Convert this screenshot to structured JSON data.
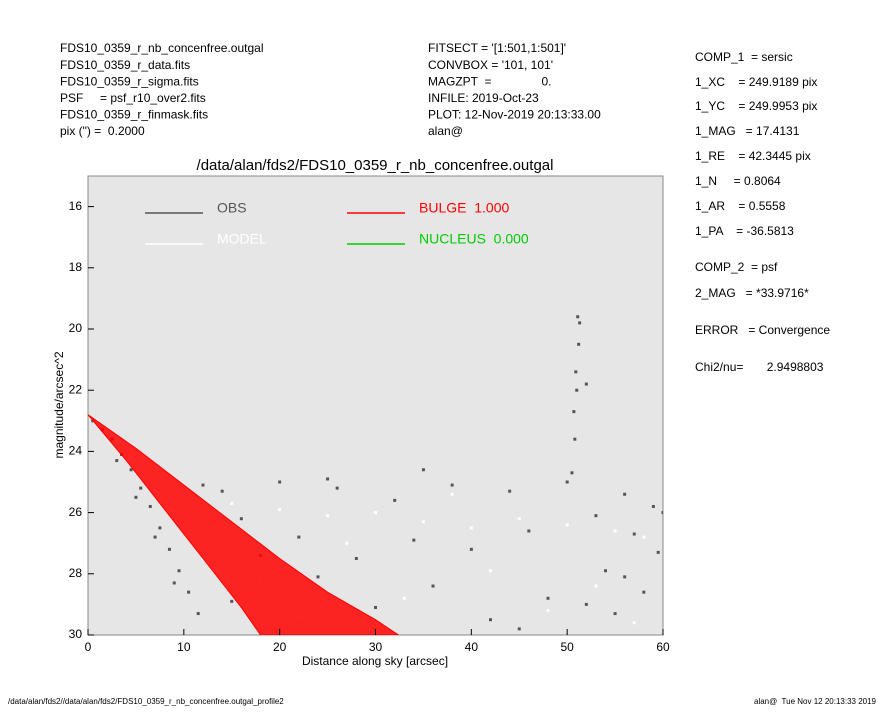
{
  "chart_data": {
    "type": "scatter",
    "title": "/data/alan/fds2/FDS10_0359_r_nb_concenfree.outgal",
    "xlabel": "Distance along sky [arcsec]",
    "ylabel": "magnitude/arcsec^2",
    "header_left": [
      "FDS10_0359_r_nb_concenfree.outgal",
      "FDS10_0359_r_data.fits",
      "FDS10_0359_r_sigma.fits",
      "PSF     = psf_r10_over2.fits",
      "FDS10_0359_r_finmask.fits",
      "pix (\") =  0.2000"
    ],
    "header_middle": [
      "FITSECT = '[1:501,1:501]'",
      "CONVBOX = '101, 101'",
      "MAGZPT  =               0.",
      "INFILE: 2019-Oct-23",
      "PLOT: 12-Nov-2019 20:13:33.00",
      "alan@"
    ],
    "side_panel": [
      "COMP_1  = sersic",
      "1_XC    = 249.9189 pix",
      "1_YC    = 249.9953 pix",
      "1_MAG   = 17.4131",
      "1_RE    = 42.3445 pix",
      "1_N     = 0.8064",
      "1_AR    = 0.5558",
      "1_PA    = -36.5813",
      "COMP_2  = psf",
      "2_MAG   = *33.9716*",
      "ERROR   = Convergence",
      "Chi2/nu=       2.9498803"
    ],
    "footer_left": "/data/alan/fds2//data/alan/fds2/FDS10_0359_r_nb_concenfree.outgal_profile2",
    "footer_right": "alan@  Tue Nov 12 20:13:33 2019",
    "xlim": [
      0,
      60
    ],
    "ylim": [
      15,
      30
    ],
    "xticks": [
      0,
      10,
      20,
      30,
      40,
      50,
      60
    ],
    "yticks": [
      16,
      18,
      20,
      22,
      24,
      26,
      28,
      30
    ],
    "y_inverted": true,
    "background": "#e6e6e6",
    "series": [
      {
        "name": "OBS",
        "color": "#555555",
        "x": [
          0.5,
          1.5,
          2.5,
          3.5,
          4.5,
          5.5,
          6.5,
          7.5,
          8.5,
          9.5,
          10.5,
          11.5,
          3,
          5,
          7,
          9,
          12,
          14,
          16,
          18,
          20,
          22,
          24,
          26,
          28,
          30,
          32,
          34,
          36,
          38,
          40,
          42,
          44,
          46,
          48,
          50,
          50.5,
          50.8,
          50.7,
          51,
          50.9,
          51.2,
          51.1,
          51.3,
          52,
          53,
          54,
          55,
          56,
          57,
          58,
          59,
          59.5,
          60,
          35,
          25,
          15,
          45,
          52,
          56
        ],
        "values": [
          23.0,
          23.3,
          23.6,
          24.1,
          24.6,
          25.2,
          25.8,
          26.5,
          27.2,
          27.9,
          28.6,
          29.3,
          24.3,
          25.5,
          26.8,
          28.3,
          25.1,
          25.3,
          26.2,
          27.4,
          25.0,
          26.8,
          28.1,
          25.2,
          27.5,
          29.1,
          25.6,
          26.9,
          28.4,
          25.1,
          27.2,
          29.5,
          25.3,
          26.6,
          28.8,
          25.0,
          24.7,
          23.6,
          22.7,
          22.0,
          21.4,
          20.5,
          19.6,
          19.8,
          21.8,
          26.1,
          27.9,
          29.3,
          25.4,
          26.7,
          28.6,
          25.8,
          27.3,
          26.0,
          24.6,
          24.9,
          28.9,
          29.8,
          29.0,
          28.1
        ]
      },
      {
        "name": "MODEL",
        "color": "#ffffff",
        "x": [
          1,
          3,
          5,
          7,
          10,
          15,
          20,
          25,
          30,
          35,
          40,
          45,
          50,
          55,
          58,
          12,
          18,
          27,
          33,
          42,
          48,
          53,
          57,
          22,
          38
        ],
        "values": [
          23.0,
          23.6,
          24.5,
          25.3,
          25.5,
          25.7,
          25.9,
          26.1,
          26.0,
          26.3,
          26.5,
          26.2,
          26.4,
          26.6,
          26.8,
          27.5,
          28.2,
          27.0,
          28.8,
          27.9,
          29.2,
          28.4,
          29.6,
          29.4,
          25.4
        ]
      },
      {
        "name": "BULGE  1.000",
        "color": "#ff0000",
        "kind": "band",
        "x": [
          0,
          5,
          10,
          15,
          20,
          25,
          30,
          32.4
        ],
        "values": [
          22.8,
          23.9,
          25.1,
          26.3,
          27.5,
          28.6,
          29.5,
          30
        ],
        "x2": [
          0,
          4,
          8,
          12,
          16,
          18
        ],
        "values2": [
          22.8,
          24.3,
          25.9,
          27.5,
          29.1,
          30
        ]
      },
      {
        "name": "NUCLEUS  0.000",
        "color": "#00cc00",
        "x": [],
        "values": []
      }
    ]
  }
}
